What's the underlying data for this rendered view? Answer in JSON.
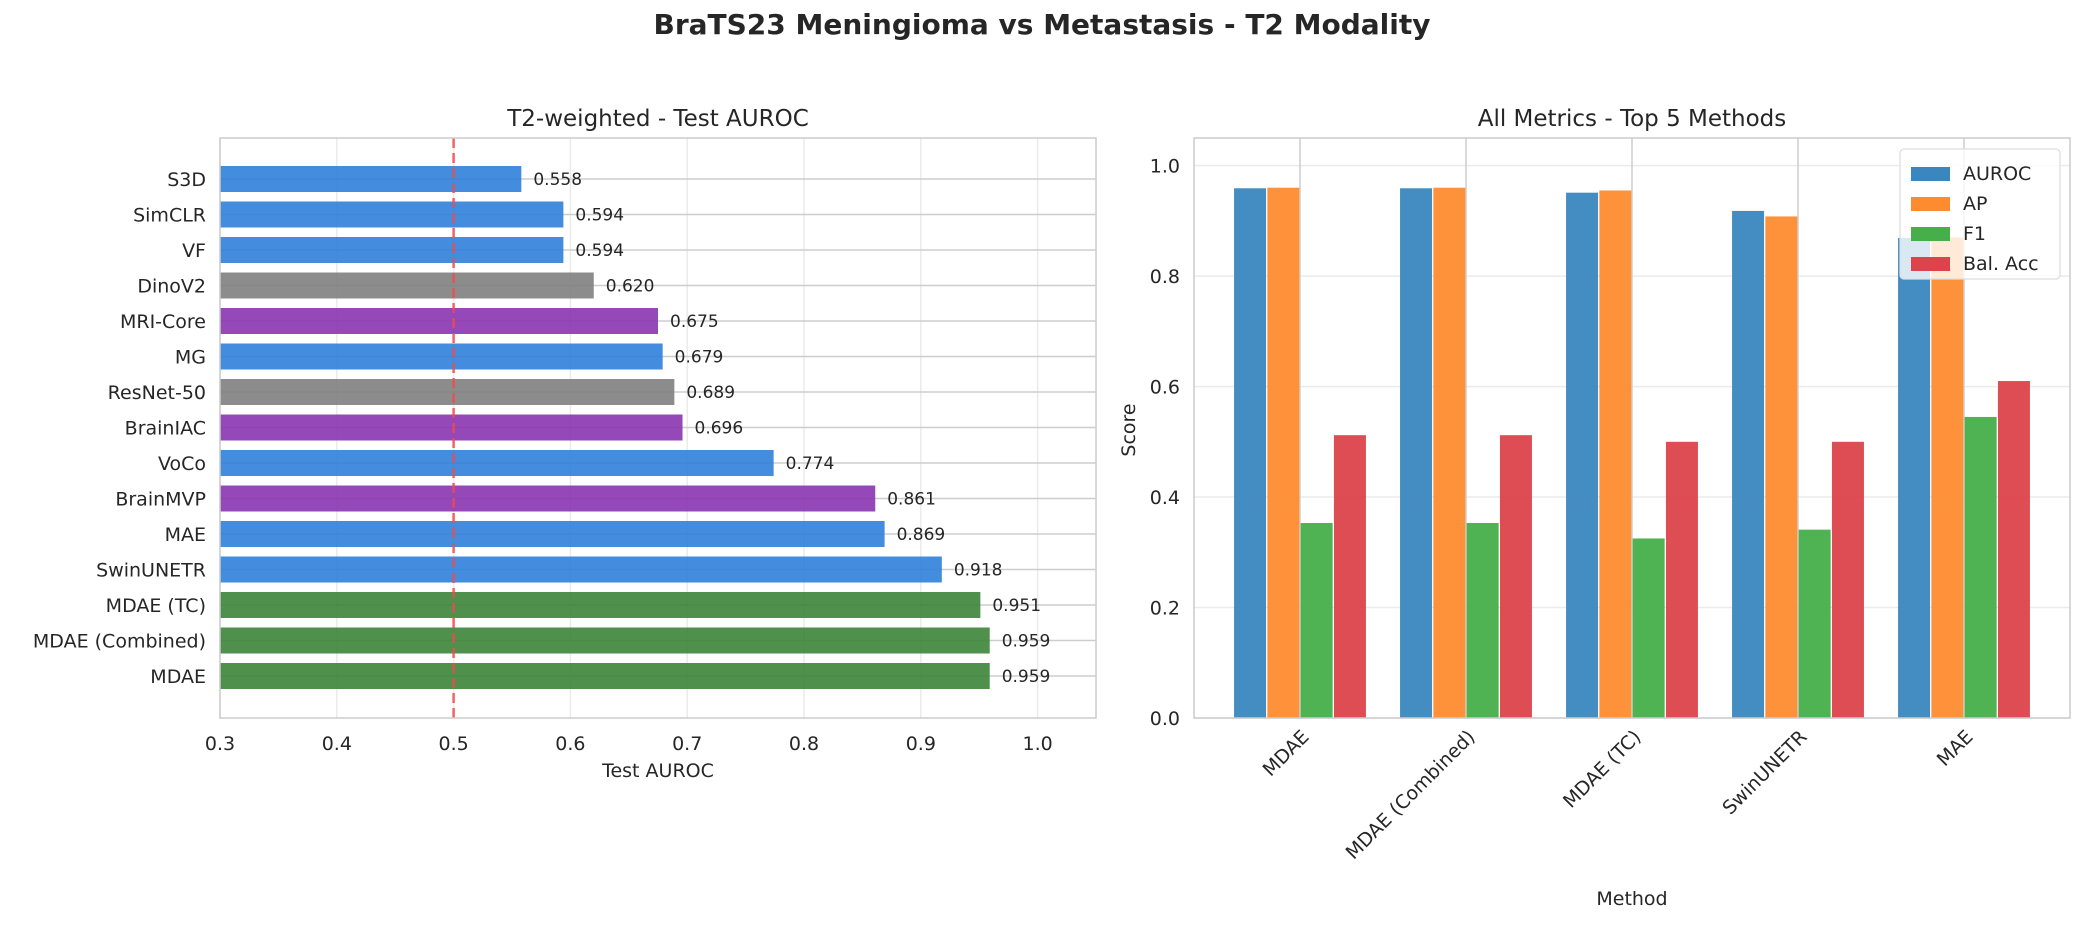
{
  "suptitle": "BraTS23 Meningioma vs Metastasis - T2 Modality",
  "chart_data": [
    {
      "type": "bar",
      "orientation": "horizontal",
      "title": "T2-weighted - Test AUROC",
      "xlabel": "Test AUROC",
      "ylabel": "",
      "xlim": [
        0.3,
        1.05
      ],
      "xticks": [
        0.3,
        0.4,
        0.5,
        0.6,
        0.7,
        0.8,
        0.9,
        1.0
      ],
      "xtick_labels": [
        "0.3",
        "0.4",
        "0.5",
        "0.6",
        "0.7",
        "0.8",
        "0.9",
        "1.0"
      ],
      "grid": true,
      "reference_line": {
        "x": 0.5,
        "color": "#f04b4b",
        "style": "dashed"
      },
      "categories": [
        "S3D",
        "SimCLR",
        "VF",
        "DinoV2",
        "MRI-Core",
        "MG",
        "ResNet-50",
        "BrainIAC",
        "VoCo",
        "BrainMVP",
        "MAE",
        "SwinUNETR",
        "MDAE (TC)",
        "MDAE (Combined)",
        "MDAE"
      ],
      "values": [
        0.558,
        0.594,
        0.594,
        0.62,
        0.675,
        0.679,
        0.689,
        0.696,
        0.774,
        0.861,
        0.869,
        0.918,
        0.951,
        0.959,
        0.959
      ],
      "value_labels": [
        "0.558",
        "0.594",
        "0.594",
        "0.620",
        "0.675",
        "0.679",
        "0.689",
        "0.696",
        "0.774",
        "0.861",
        "0.869",
        "0.918",
        "0.951",
        "0.959",
        "0.959"
      ],
      "bar_colors": [
        "#2f80da",
        "#2f80da",
        "#2f80da",
        "#808080",
        "#8a35b0",
        "#2f80da",
        "#808080",
        "#8a35b0",
        "#2f80da",
        "#8a35b0",
        "#2f80da",
        "#2f80da",
        "#3b8438",
        "#3b8438",
        "#3b8438"
      ]
    },
    {
      "type": "bar",
      "title": "All Metrics - Top 5 Methods",
      "xlabel": "Method",
      "ylabel": "Score",
      "ylim": [
        0,
        1.05
      ],
      "yticks": [
        0.0,
        0.2,
        0.4,
        0.6,
        0.8,
        1.0
      ],
      "ytick_labels": [
        "0.0",
        "0.2",
        "0.4",
        "0.6",
        "0.8",
        "1.0"
      ],
      "grid": true,
      "legend_position": "top-right",
      "categories": [
        "MDAE",
        "MDAE (Combined)",
        "MDAE (TC)",
        "SwinUNETR",
        "MAE"
      ],
      "series": [
        {
          "name": "AUROC",
          "color": "#3a87c0",
          "values": [
            0.959,
            0.959,
            0.951,
            0.918,
            0.869
          ]
        },
        {
          "name": "AP",
          "color": "#fd8c30",
          "values": [
            0.96,
            0.96,
            0.955,
            0.908,
            0.87
          ]
        },
        {
          "name": "F1",
          "color": "#47af4a",
          "values": [
            0.353,
            0.353,
            0.325,
            0.341,
            0.545
          ]
        },
        {
          "name": "Bal. Acc",
          "color": "#dc434a",
          "values": [
            0.512,
            0.512,
            0.5,
            0.5,
            0.61
          ]
        }
      ]
    }
  ]
}
